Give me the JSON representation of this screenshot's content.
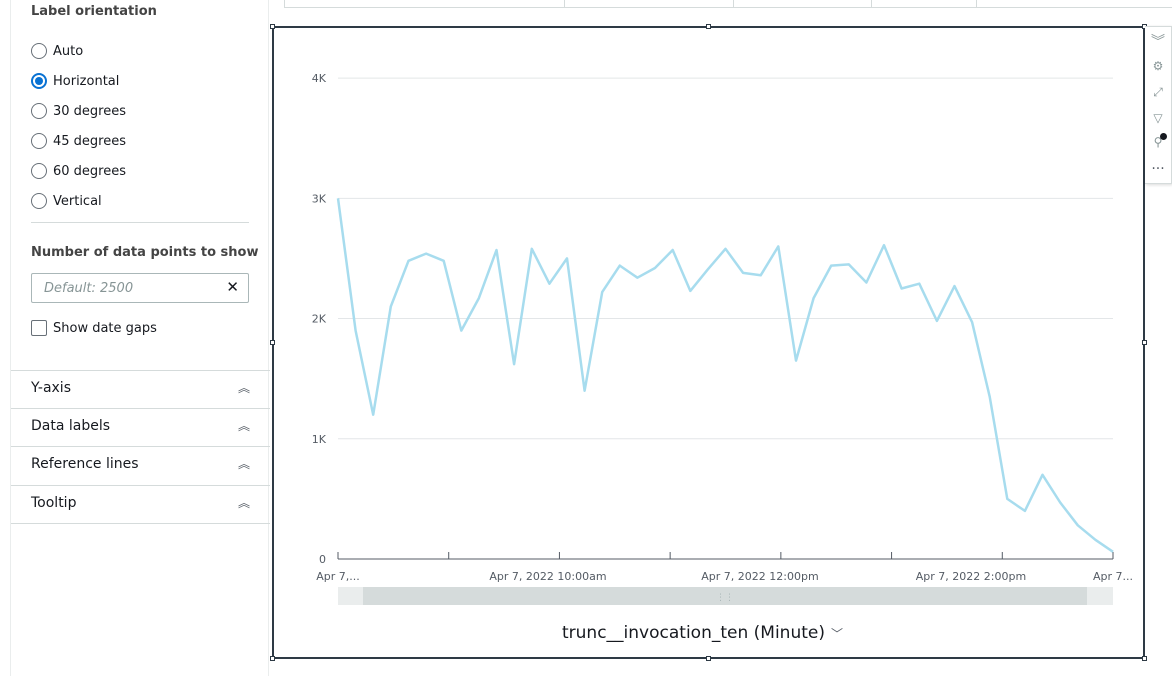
{
  "sidebar": {
    "label_orientation_title": "Label orientation",
    "orientation_options": [
      {
        "label": "Auto",
        "checked": false
      },
      {
        "label": "Horizontal",
        "checked": true
      },
      {
        "label": "30 degrees",
        "checked": false
      },
      {
        "label": "45 degrees",
        "checked": false
      },
      {
        "label": "60 degrees",
        "checked": false
      },
      {
        "label": "Vertical",
        "checked": false
      }
    ],
    "data_points_title": "Number of data points to show",
    "data_points_placeholder": "Default: 2500",
    "data_points_value": "",
    "show_date_gaps_label": "Show date gaps",
    "show_date_gaps_checked": false,
    "accordions": [
      {
        "label": "Y-axis"
      },
      {
        "label": "Data labels"
      },
      {
        "label": "Reference lines"
      },
      {
        "label": "Tooltip"
      }
    ]
  },
  "visual": {
    "x_axis_title": "trunc__invocation_ten (Minute)",
    "toolbar_icons": [
      "collapse-icon",
      "settings-icon",
      "expand-icon",
      "filter-icon",
      "pin-icon",
      "more-options-icon"
    ]
  },
  "chart_data": {
    "type": "line",
    "color": "#a7dcee",
    "title": "",
    "xlabel": "trunc__invocation_ten (Minute)",
    "ylabel": "",
    "ylim": [
      0,
      4400
    ],
    "y_ticks": [
      0,
      1000,
      2000,
      3000,
      4000
    ],
    "y_tick_labels": [
      "0",
      "1K",
      "2K",
      "3K",
      "4K"
    ],
    "x_tick_labels": [
      "Apr 7,...",
      "Apr 7, 2022 10:00am",
      "Apr 7, 2022 12:00pm",
      "Apr 7, 2022 2:00pm",
      "Apr 7..."
    ],
    "grid": true,
    "series": [
      {
        "values": [
          3000,
          1900,
          1200,
          2100,
          2480,
          2540,
          2480,
          1900,
          2170,
          2570,
          1620,
          2580,
          2290,
          2500,
          1400,
          2220,
          2440,
          2340,
          2420,
          2570,
          2230,
          2410,
          2580,
          2380,
          2360,
          2600,
          1650,
          2170,
          2440,
          2450,
          2300,
          2610,
          2250,
          2290,
          1980,
          2270,
          1970,
          1350,
          500,
          400,
          700,
          470,
          280,
          160,
          60
        ]
      }
    ]
  }
}
